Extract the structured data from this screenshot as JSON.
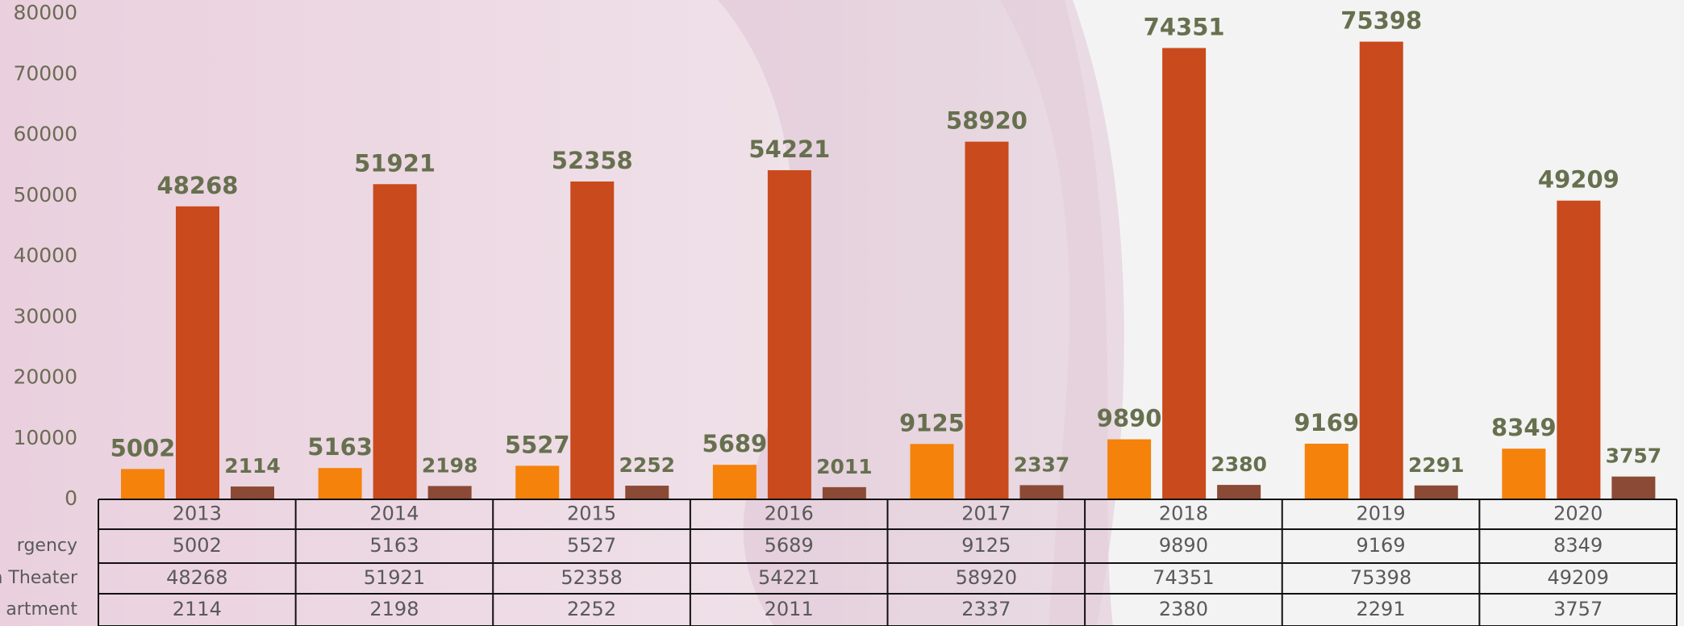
{
  "chart_data": {
    "type": "bar",
    "categories": [
      "2013",
      "2014",
      "2015",
      "2016",
      "2017",
      "2018",
      "2019",
      "2020"
    ],
    "series": [
      {
        "name": "rgency",
        "color": "#f5820a",
        "values": [
          5002,
          5163,
          5527,
          5689,
          9125,
          9890,
          9169,
          8349
        ]
      },
      {
        "name": "n Theater",
        "color": "#c94a1c",
        "values": [
          48268,
          51921,
          52358,
          54221,
          58920,
          74351,
          75398,
          49209
        ]
      },
      {
        "name": "artment",
        "color": "#8b4a35",
        "values": [
          2114,
          2198,
          2252,
          2011,
          2337,
          2380,
          2291,
          3757
        ]
      }
    ],
    "ylim": [
      0,
      80000
    ],
    "yticks": [
      0,
      10000,
      20000,
      30000,
      40000,
      50000,
      60000,
      70000,
      80000
    ],
    "grid": false
  }
}
